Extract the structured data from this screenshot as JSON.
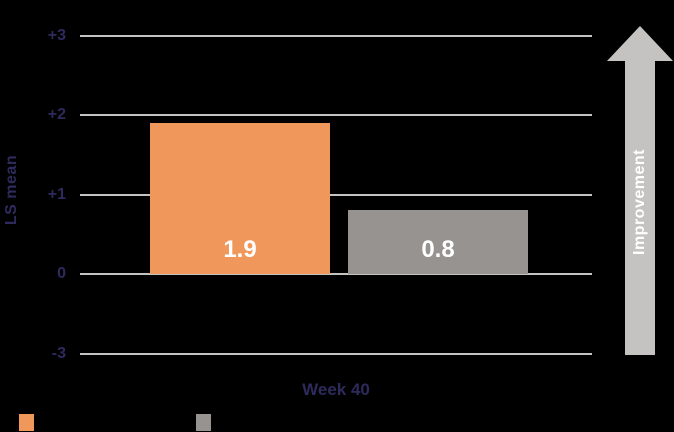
{
  "colors": {
    "background": "#000000",
    "navy": "#2E2A5C",
    "grid": "#C5C3C1",
    "arrow": "#C5C3C1",
    "orange": "#F0985C",
    "graybar": "#969390",
    "value_text": "#FFFFFF"
  },
  "chart_data": {
    "type": "bar",
    "categories": [
      "Week 40"
    ],
    "series": [
      {
        "name": "orange-series",
        "color": "#F0985C",
        "values": [
          1.9
        ],
        "label": "1.9"
      },
      {
        "name": "gray-series",
        "color": "#969390",
        "values": [
          0.8
        ],
        "label": "0.8"
      }
    ],
    "title": "",
    "xlabel": "Week 40",
    "ylabel": "LS mean",
    "yticks": [
      "+3",
      "+2",
      "+1",
      "0",
      "-3"
    ],
    "ytick_values": [
      3,
      2,
      1,
      0,
      -3
    ],
    "axis_note": "broken y-axis: -3 gridline sits one unit-spacing below 0",
    "grid": true,
    "annotation": {
      "arrow_label": "Improvement",
      "arrow_direction": "up"
    },
    "legend": {
      "position": "bottom-left",
      "swatches": [
        {
          "color": "#F0985C"
        },
        {
          "color": "#969390"
        }
      ]
    }
  }
}
